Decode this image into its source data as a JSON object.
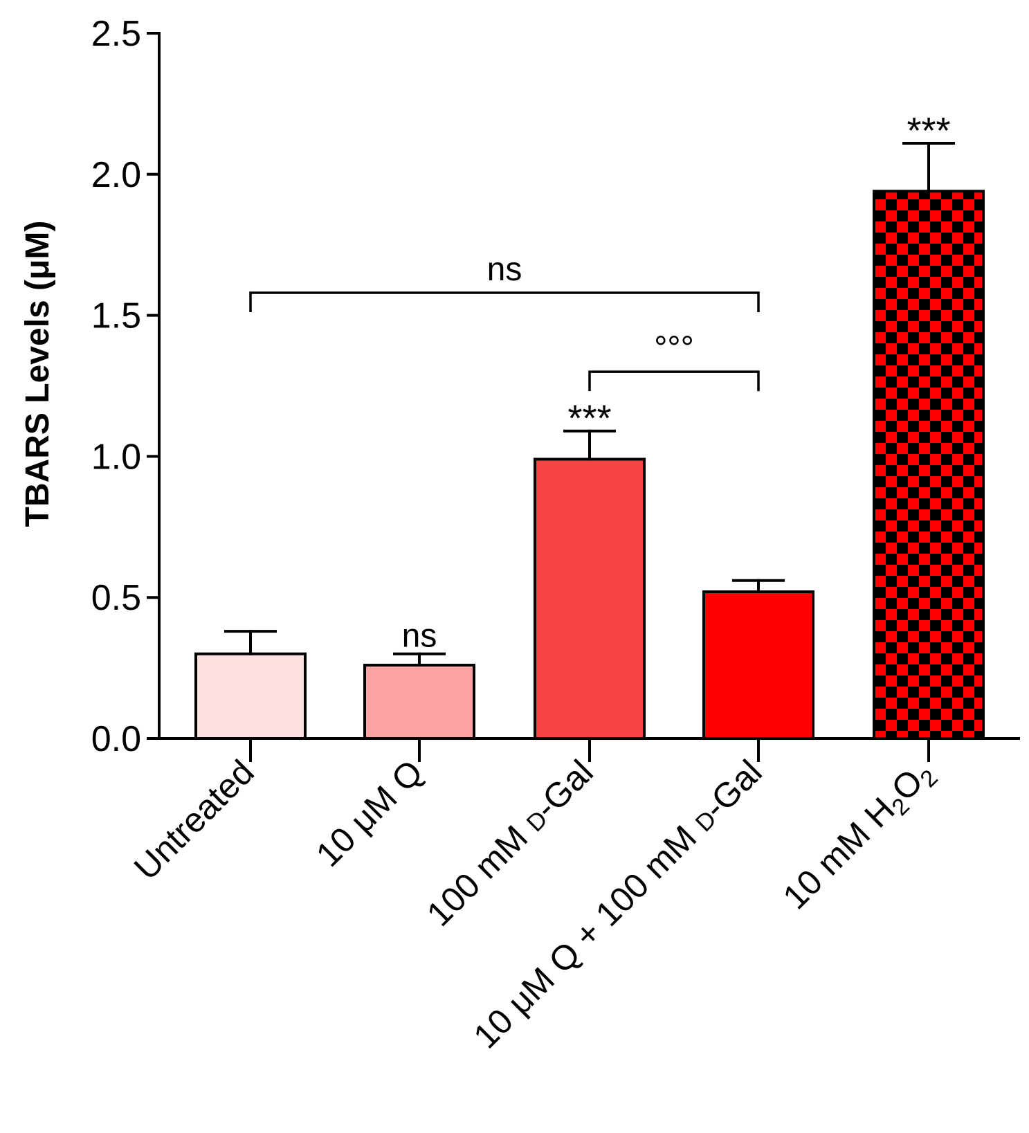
{
  "chart_data": {
    "type": "bar",
    "title": "",
    "xlabel": "",
    "ylabel": "TBARS Levels (μM)",
    "ylim": [
      0,
      2.5
    ],
    "yticks": [
      "0.0",
      "0.5",
      "1.0",
      "1.5",
      "2.0",
      "2.5"
    ],
    "ytick_values": [
      0,
      0.5,
      1.0,
      1.5,
      2.0,
      2.5
    ],
    "categories": [
      {
        "label": "Untreated"
      },
      {
        "label": "10 μM Q"
      },
      {
        "label_prefix": "100 mM ",
        "label_smallcaps": "d",
        "label_suffix": "-Gal"
      },
      {
        "label_prefix": "10 μM Q + 100 mM ",
        "label_smallcaps": "d",
        "label_suffix": "-Gal"
      },
      {
        "label_prefix": "10 mM H",
        "sub1": "2",
        "label_mid": "O",
        "sub2": "2"
      }
    ],
    "values": [
      0.3,
      0.26,
      0.99,
      0.52,
      1.94
    ],
    "errors": [
      0.08,
      0.04,
      0.1,
      0.04,
      0.17
    ],
    "colors": [
      "#FFE0E0",
      "#FBA3A3",
      "#F64343",
      "#FF0000",
      "checker"
    ],
    "checker_colors": [
      "#FF0000",
      "#000000"
    ],
    "significance": [
      "",
      "ns",
      "***",
      "",
      "***"
    ],
    "brackets": [
      {
        "from": 0,
        "to": 3,
        "y": 1.58,
        "label": "ns"
      },
      {
        "from": 2,
        "to": 3,
        "y": 1.3,
        "label": "°°°"
      }
    ]
  }
}
